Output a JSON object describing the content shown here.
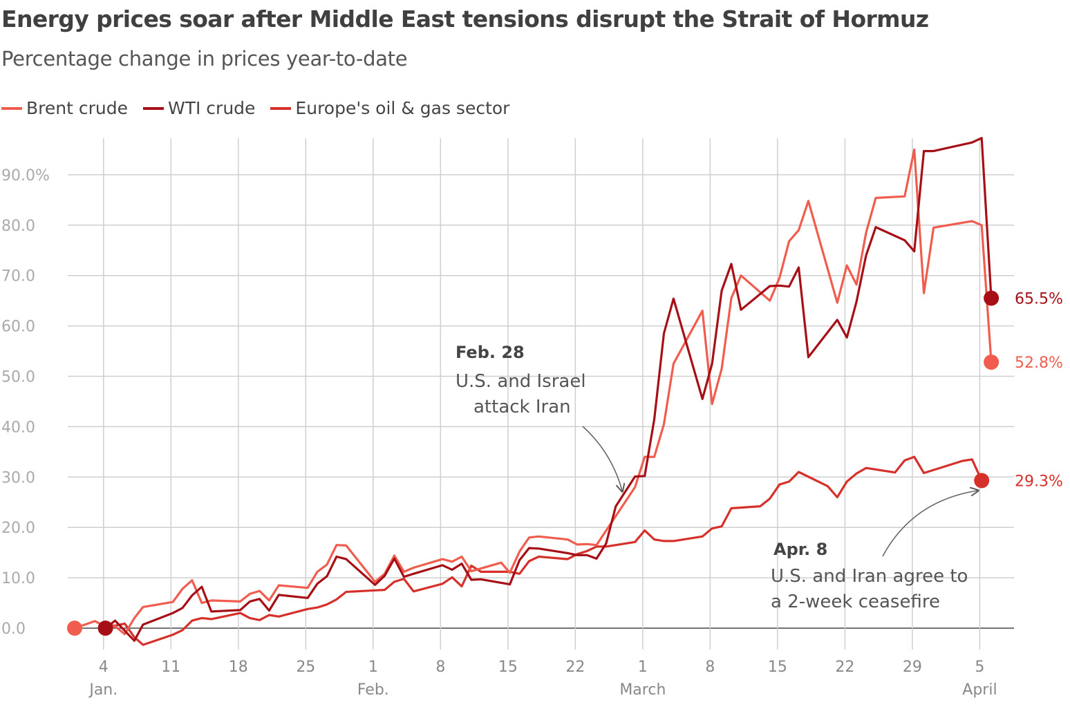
{
  "title": "Energy prices soar after Middle East tensions disrupt the Strait of Hormuz",
  "subtitle": "Percentage change in prices year-to-date",
  "legend": [
    {
      "label": "Brent crude",
      "color": "#f05d4e"
    },
    {
      "label": "WTI crude",
      "color": "#a50f15"
    },
    {
      "label": "Europe's oil & gas sector",
      "color": "#d6302a"
    }
  ],
  "chart_data": {
    "type": "line",
    "title": "Energy prices soar after Middle East tensions disrupt the Strait of Hormuz",
    "ylabel": "Percentage change in prices year-to-date",
    "ylim": [
      -4,
      98
    ],
    "xlim": [
      -0.4,
      96.5
    ],
    "y_ticks": [
      0,
      10,
      20,
      30,
      40,
      50,
      60,
      70,
      80,
      90
    ],
    "y_tick_labels": [
      "0.0",
      "10.0",
      "20.0",
      "30.0",
      "40.0",
      "50.0",
      "60.0",
      "70.0",
      "80.0",
      "90.0%"
    ],
    "x_ticks": [
      {
        "day": 3,
        "label": "4",
        "month": "Jan."
      },
      {
        "day": 10,
        "label": "11"
      },
      {
        "day": 17,
        "label": "18"
      },
      {
        "day": 24,
        "label": "25"
      },
      {
        "day": 31,
        "label": "1",
        "month": "Feb."
      },
      {
        "day": 38,
        "label": "8"
      },
      {
        "day": 45,
        "label": "15"
      },
      {
        "day": 52,
        "label": "22"
      },
      {
        "day": 59,
        "label": "1",
        "month": "March"
      },
      {
        "day": 66,
        "label": "8"
      },
      {
        "day": 73,
        "label": "15"
      },
      {
        "day": 80,
        "label": "22"
      },
      {
        "day": 87,
        "label": "29"
      },
      {
        "day": 94,
        "label": "5",
        "month": "April"
      }
    ],
    "series": [
      {
        "name": "Brent crude",
        "color": "#f05d4e",
        "end_label": "52.8%",
        "points": [
          [
            0,
            0
          ],
          [
            2.1,
            1.4
          ],
          [
            3.2,
            0.3
          ],
          [
            4.2,
            0.4
          ],
          [
            5.2,
            -1.2
          ],
          [
            6.2,
            2
          ],
          [
            7.1,
            4.2
          ],
          [
            10.2,
            5.2
          ],
          [
            11.2,
            7.8
          ],
          [
            12.2,
            9.5
          ],
          [
            13.2,
            5
          ],
          [
            14.2,
            5.5
          ],
          [
            17.2,
            5.3
          ],
          [
            18.2,
            6.8
          ],
          [
            19.2,
            7.4
          ],
          [
            20.2,
            5.5
          ],
          [
            21.2,
            8.5
          ],
          [
            24.2,
            8
          ],
          [
            25.2,
            11.2
          ],
          [
            26.2,
            12.6
          ],
          [
            27.2,
            16.5
          ],
          [
            28.2,
            16.4
          ],
          [
            31.2,
            9.2
          ],
          [
            32.2,
            10.8
          ],
          [
            33.2,
            14.4
          ],
          [
            34.2,
            11.2
          ],
          [
            35.2,
            12
          ],
          [
            38.2,
            13.7
          ],
          [
            39.2,
            13.2
          ],
          [
            40.2,
            14.2
          ],
          [
            41.2,
            11.3
          ],
          [
            44.3,
            13
          ],
          [
            45.2,
            11
          ],
          [
            46.2,
            15.2
          ],
          [
            47.2,
            18
          ],
          [
            48.2,
            18.2
          ],
          [
            51.2,
            17.6
          ],
          [
            52.2,
            16.6
          ],
          [
            53.2,
            16.7
          ],
          [
            54.2,
            16.5
          ],
          [
            58.2,
            28
          ],
          [
            59.2,
            34
          ],
          [
            60.2,
            34
          ],
          [
            61.2,
            40.5
          ],
          [
            62.2,
            52.5
          ],
          [
            65.2,
            63
          ],
          [
            66.2,
            44.5
          ],
          [
            67.2,
            51.5
          ],
          [
            68.2,
            65.5
          ],
          [
            69.2,
            70
          ],
          [
            72.2,
            65
          ],
          [
            73.2,
            69.5
          ],
          [
            74.2,
            76.8
          ],
          [
            75.2,
            79
          ],
          [
            76.2,
            84.8
          ],
          [
            79.2,
            64.6
          ],
          [
            80.2,
            72
          ],
          [
            81.2,
            68.2
          ],
          [
            82.2,
            78.5
          ],
          [
            83.2,
            85.4
          ],
          [
            86.2,
            85.7
          ],
          [
            87.2,
            95
          ],
          [
            88.2,
            66.5
          ],
          [
            89.2,
            79.5
          ],
          [
            93.2,
            80.8
          ],
          [
            94.2,
            80
          ],
          [
            95.2,
            52.8
          ]
        ]
      },
      {
        "name": "WTI crude",
        "color": "#a50f15",
        "end_label": "65.5%",
        "points": [
          [
            3.2,
            0
          ],
          [
            4.2,
            1.5
          ],
          [
            5.2,
            -0.5
          ],
          [
            6.2,
            -2.5
          ],
          [
            7.1,
            0.7
          ],
          [
            10.2,
            3
          ],
          [
            11.2,
            4
          ],
          [
            12.2,
            6.5
          ],
          [
            13.2,
            8.2
          ],
          [
            14.2,
            3.3
          ],
          [
            17.2,
            3.6
          ],
          [
            18.2,
            5.3
          ],
          [
            19.2,
            5.8
          ],
          [
            20.2,
            3.5
          ],
          [
            21.2,
            6.6
          ],
          [
            24.2,
            6
          ],
          [
            25.2,
            8.8
          ],
          [
            26.2,
            10.3
          ],
          [
            27.2,
            14.2
          ],
          [
            28.2,
            13.7
          ],
          [
            31.2,
            8.6
          ],
          [
            32.2,
            10.4
          ],
          [
            33.2,
            13.8
          ],
          [
            34.2,
            10.2
          ],
          [
            35.2,
            10.8
          ],
          [
            38.2,
            12.5
          ],
          [
            39.2,
            11.6
          ],
          [
            40.2,
            12.8
          ],
          [
            41.2,
            9.6
          ],
          [
            42.2,
            9.7
          ],
          [
            45.2,
            8.7
          ],
          [
            46.2,
            13.5
          ],
          [
            47.2,
            15.9
          ],
          [
            48.2,
            15.8
          ],
          [
            51.2,
            14.9
          ],
          [
            52.2,
            14.5
          ],
          [
            53.2,
            14.5
          ],
          [
            54.2,
            13.8
          ],
          [
            55.2,
            16.8
          ],
          [
            56.2,
            24.2
          ],
          [
            58.2,
            30.1
          ],
          [
            59.2,
            30.2
          ],
          [
            60.2,
            41.5
          ],
          [
            61.2,
            58.5
          ],
          [
            62.2,
            65.4
          ],
          [
            65.2,
            45.5
          ],
          [
            66.2,
            52.5
          ],
          [
            67.2,
            67
          ],
          [
            68.2,
            72.3
          ],
          [
            69.2,
            63.2
          ],
          [
            72.2,
            67.9
          ],
          [
            73.2,
            68
          ],
          [
            74.2,
            67.8
          ],
          [
            75.2,
            71.6
          ],
          [
            76.2,
            53.8
          ],
          [
            79.2,
            61.2
          ],
          [
            80.2,
            57.7
          ],
          [
            81.2,
            64.8
          ],
          [
            82.2,
            74
          ],
          [
            83.2,
            79.6
          ],
          [
            86.2,
            77
          ],
          [
            87.2,
            74.8
          ],
          [
            88.2,
            94.7
          ],
          [
            89.2,
            94.7
          ],
          [
            93.2,
            96.4
          ],
          [
            94.2,
            97.3
          ],
          [
            95.2,
            65.5
          ]
        ]
      },
      {
        "name": "Europe's oil & gas sector",
        "color": "#d6302a",
        "end_label": "29.3%",
        "points": [
          [
            3.2,
            0.6
          ],
          [
            4.2,
            0.5
          ],
          [
            5.2,
            0.9
          ],
          [
            6.2,
            -1.8
          ],
          [
            7.1,
            -3.3
          ],
          [
            10.2,
            -1.3
          ],
          [
            11.2,
            -0.4
          ],
          [
            12.2,
            1.5
          ],
          [
            13.2,
            2
          ],
          [
            14.2,
            1.8
          ],
          [
            17.2,
            3
          ],
          [
            18.2,
            2
          ],
          [
            19.2,
            1.6
          ],
          [
            20.2,
            2.6
          ],
          [
            21.2,
            2.3
          ],
          [
            24.2,
            3.8
          ],
          [
            25.2,
            4.1
          ],
          [
            26.2,
            4.7
          ],
          [
            27.2,
            5.7
          ],
          [
            28.2,
            7.2
          ],
          [
            31.2,
            7.5
          ],
          [
            32.2,
            7.6
          ],
          [
            33.2,
            9.2
          ],
          [
            34.2,
            9.8
          ],
          [
            35.2,
            7.3
          ],
          [
            38.2,
            8.8
          ],
          [
            39.2,
            10.1
          ],
          [
            40.2,
            8.3
          ],
          [
            41.2,
            12.4
          ],
          [
            42.2,
            11.2
          ],
          [
            45.2,
            11.2
          ],
          [
            46.2,
            10.8
          ],
          [
            47.2,
            13.3
          ],
          [
            48.2,
            14.2
          ],
          [
            51.2,
            13.7
          ],
          [
            52.2,
            14.7
          ],
          [
            53.2,
            15.3
          ],
          [
            54.2,
            16.2
          ],
          [
            55.2,
            16.2
          ],
          [
            58.2,
            17.1
          ],
          [
            59.2,
            19.4
          ],
          [
            60.2,
            17.6
          ],
          [
            61.2,
            17.3
          ],
          [
            62.2,
            17.3
          ],
          [
            65.2,
            18.2
          ],
          [
            66.2,
            19.8
          ],
          [
            67.2,
            20.2
          ],
          [
            68.2,
            23.8
          ],
          [
            71.2,
            24.2
          ],
          [
            72.2,
            25.7
          ],
          [
            73.2,
            28.5
          ],
          [
            74.2,
            29.1
          ],
          [
            75.2,
            31
          ],
          [
            78.2,
            28.2
          ],
          [
            79.2,
            26
          ],
          [
            80.2,
            29.1
          ],
          [
            81.2,
            30.7
          ],
          [
            82.2,
            31.8
          ],
          [
            85.2,
            30.9
          ],
          [
            86.2,
            33.3
          ],
          [
            87.2,
            34
          ],
          [
            88.2,
            30.8
          ],
          [
            92.2,
            33.2
          ],
          [
            93.2,
            33.5
          ],
          [
            94.2,
            29.3
          ]
        ]
      }
    ],
    "start_markers": [
      {
        "series": "Brent crude",
        "day": 0,
        "value": 0
      },
      {
        "series": "WTI crude",
        "day": 3.2,
        "value": 0
      }
    ],
    "annotations": [
      {
        "date": "Feb. 28",
        "text": [
          "U.S. and Israel",
          "attack Iran"
        ]
      },
      {
        "date": "Apr. 8",
        "text": [
          "U.S. and Iran agree to",
          "a 2-week ceasefire"
        ]
      }
    ]
  }
}
